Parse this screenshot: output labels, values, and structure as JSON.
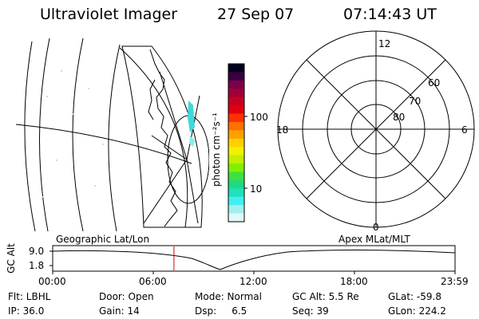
{
  "header": {
    "title": "Ultraviolet Imager",
    "date": "27 Sep 07",
    "time": "07:14:43 UT"
  },
  "colorbar": {
    "unit_label": "photon cm⁻²s⁻¹",
    "tick_labels": [
      "100",
      "10"
    ],
    "colors": [
      "#000020",
      "#3a0040",
      "#7a0048",
      "#a00038",
      "#c80020",
      "#e00010",
      "#ff3000",
      "#ff7000",
      "#ffa000",
      "#ffd000",
      "#f0f000",
      "#c0f000",
      "#80f000",
      "#40e040",
      "#20d880",
      "#20e0c0",
      "#40f0f0",
      "#a0f0f0",
      "#e0f8f8"
    ]
  },
  "polar_plot": {
    "hour_labels": {
      "top": "12",
      "left": "18",
      "right": "6",
      "bottom": "0"
    },
    "lat_labels": [
      "60",
      "70",
      "80"
    ]
  },
  "timeline": {
    "left_label": "Geographic Lat/Lon",
    "right_label": "Apex MLat/MLT",
    "axis_title": "GC Alt",
    "y_ticks": [
      "9.0",
      "1.8"
    ],
    "x_ticks": [
      "00:00",
      "06:00",
      "12:00",
      "18:00",
      "23:59"
    ],
    "current_time_marker": "07:14",
    "marker_color": "#e00000"
  },
  "info": {
    "flt": "Flt: LBHL",
    "ip": "IP: 36.0",
    "door": "Door: Open",
    "gain": "Gain: 14",
    "mode": "Mode: Normal",
    "dsp": "Dsp:     6.5",
    "gc_alt": "GC Alt: 5.5 Re",
    "seq": "Seq: 39",
    "glat": "GLat: -59.8",
    "glon": "GLon: 224.2"
  }
}
